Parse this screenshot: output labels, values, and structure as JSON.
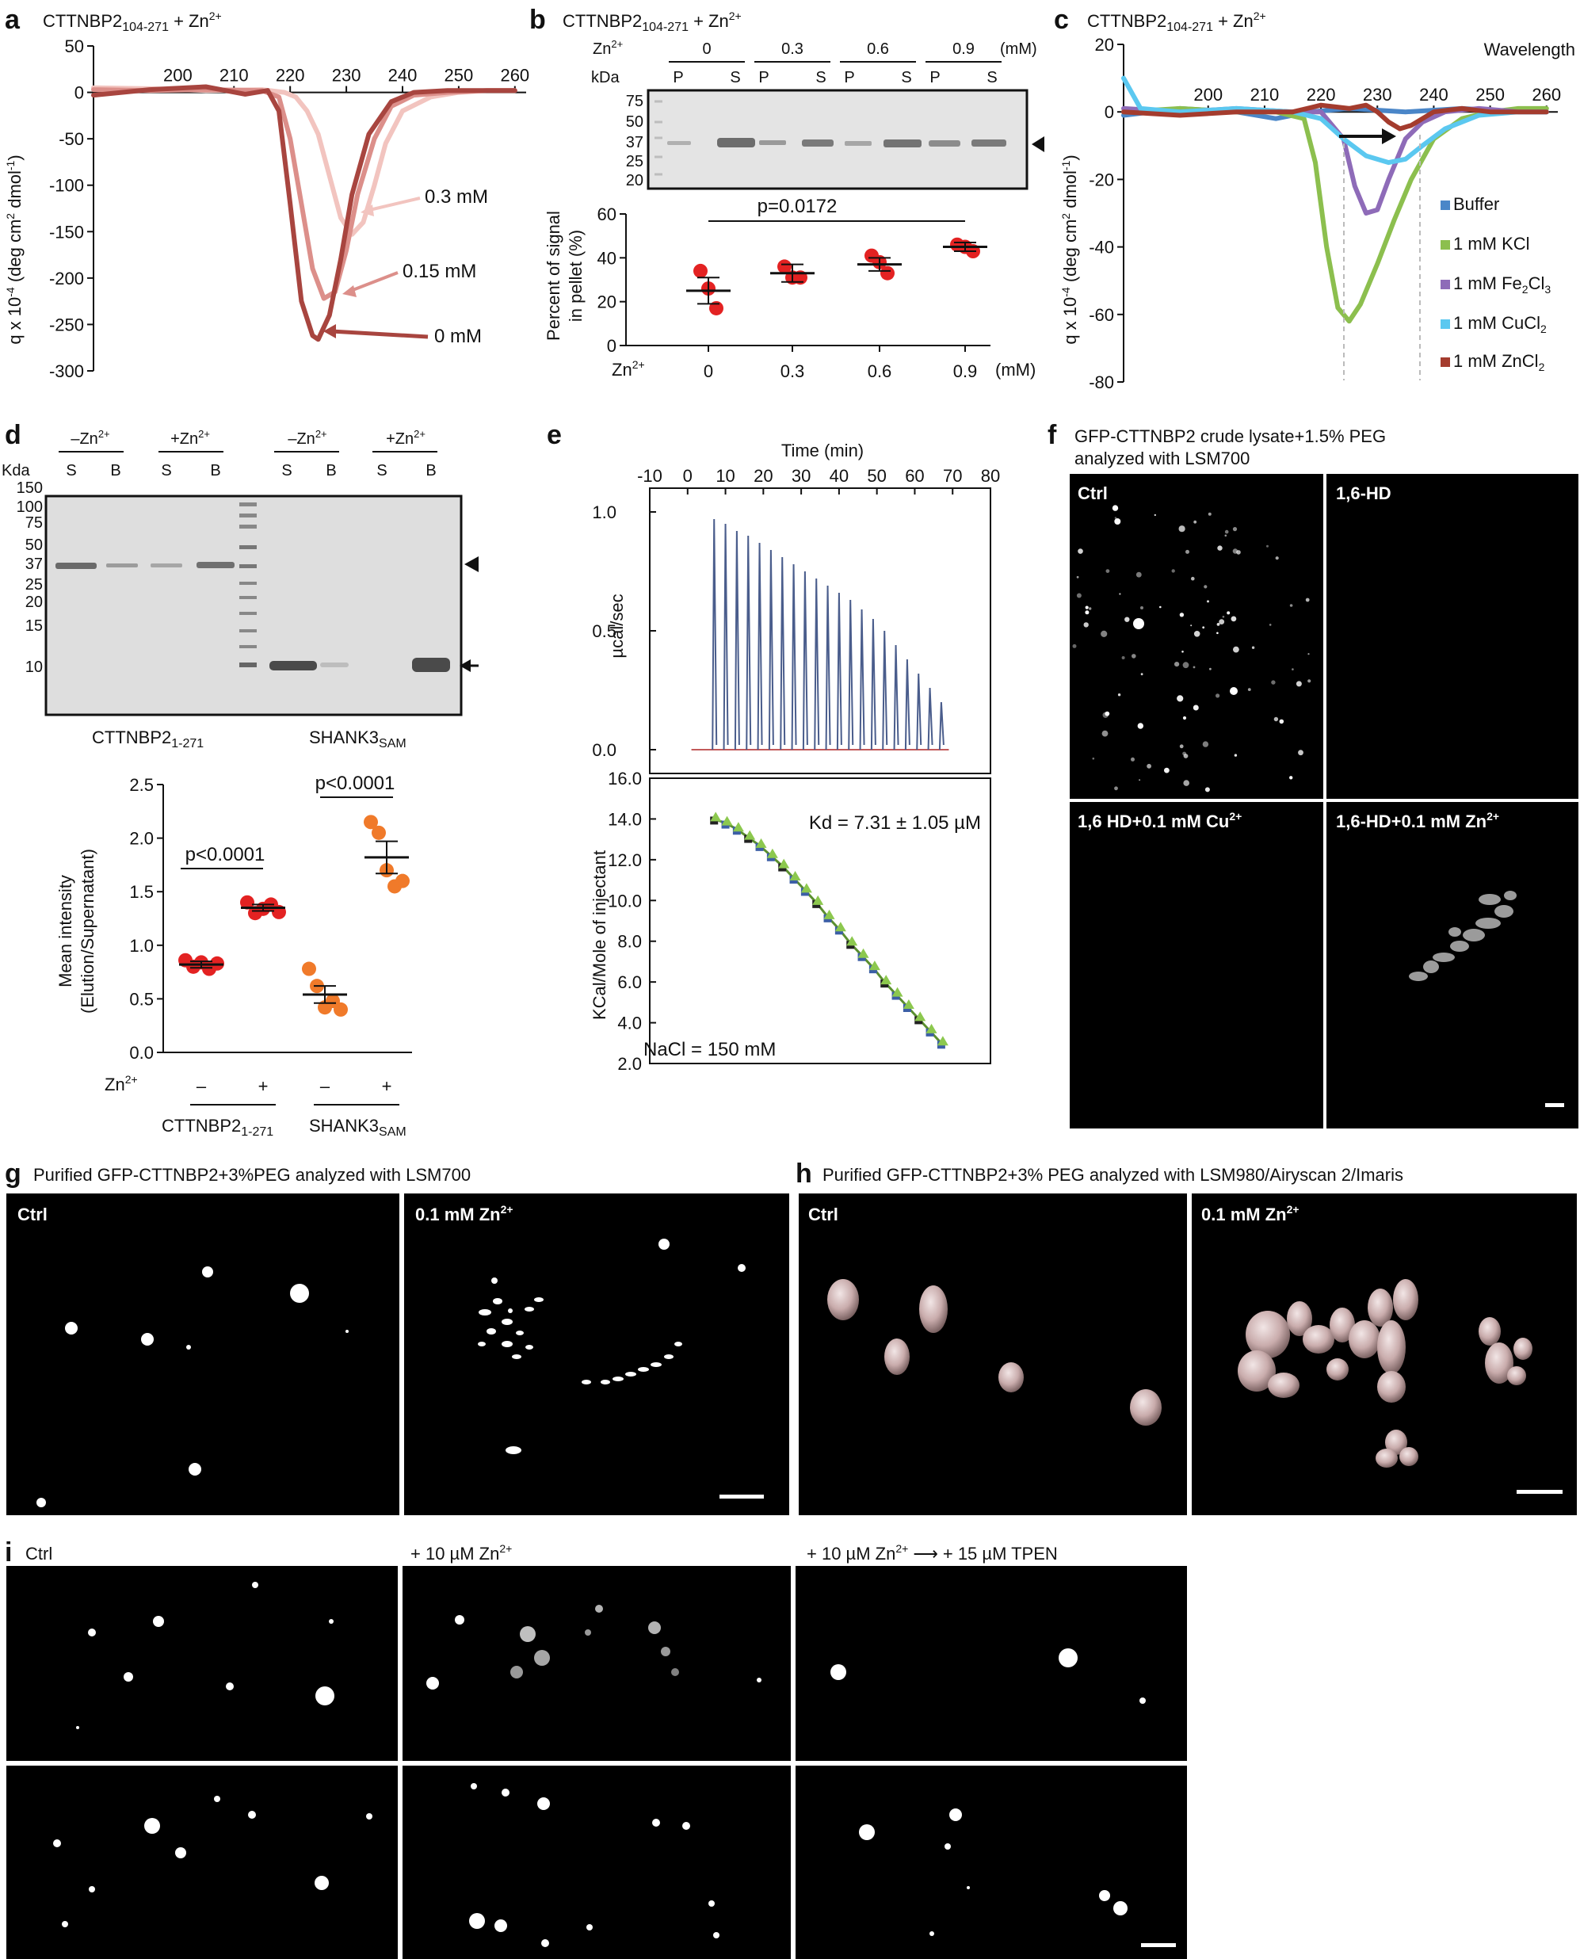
{
  "panels": {
    "a": {
      "label": "a",
      "title": "CTTNBP2",
      "title_sub": "104-271",
      "title_suffix": " + Zn",
      "title_sup": "2+",
      "ylabel": "q x 10",
      "ylabel_sup": "-4",
      "ylabel_rest": " (deg cm",
      "ylabel_sup2": "2",
      "ylabel_end": " dmol",
      "ylabel_sup3": "-1",
      "ylabel_close": ")",
      "annotations": [
        "0.3 mM",
        "0.15 mM",
        "0 mM"
      ]
    },
    "b": {
      "label": "b",
      "title": "CTTNBP2",
      "title_sub": "104-271",
      "title_suffix": " + Zn",
      "title_sup": "2+",
      "gel": {
        "zn_label": "Zn",
        "zn_sup": "2+",
        "conc": [
          "0",
          "0.3",
          "0.6",
          "0.9"
        ],
        "unit": "(mM)",
        "lanes": [
          "P",
          "S",
          "P",
          "S",
          "P",
          "S",
          "P",
          "S"
        ],
        "kda_label": "kDa",
        "markers": [
          "75",
          "50",
          "37",
          "25",
          "20"
        ]
      },
      "ylabel1": "Percent of signal",
      "ylabel2": "in pellet (%)",
      "pvalue": "p=0.0172",
      "xaxis_label": "Zn",
      "xaxis_sup": "2+",
      "xaxis_unit": "(mM)"
    },
    "c": {
      "label": "c",
      "title": "CTTNBP2",
      "title_sub": "104-271",
      "title_suffix": " + Zn",
      "title_sup": "2+",
      "xlabel": "Wavelength",
      "ylabel": "q x 10",
      "ylabel_sup": "-4",
      "ylabel_rest": " (deg cm",
      "ylabel_sup2": "2",
      "ylabel_end": " dmol",
      "ylabel_sup3": "-1",
      "ylabel_close": ")",
      "legend": [
        {
          "name": "Buffer",
          "color": "#4a86c8"
        },
        {
          "name": "1 mM KCl",
          "color": "#8cbf4e"
        },
        {
          "name": "1 mM Fe",
          "sub1": "2",
          "name2": "Cl",
          "sub2": "3",
          "color": "#8e6bb8"
        },
        {
          "name": "1 mM CuCl",
          "sub1": "2",
          "color": "#5bc8f0"
        },
        {
          "name": "1 mM ZnCl",
          "sub1": "2",
          "color": "#a43c2e"
        }
      ]
    },
    "d": {
      "label": "d",
      "gel": {
        "groups": [
          "–Zn",
          "+Zn",
          "–Zn",
          "+Zn"
        ],
        "sup": "2+",
        "lanes": [
          "S",
          "B",
          "S",
          "B",
          "S",
          "B",
          "S",
          "B"
        ],
        "kda_label": "Kda",
        "markers": [
          "150",
          "100",
          "75",
          "50",
          "37",
          "25",
          "20",
          "15",
          "10"
        ],
        "left_label": "CTTNBP2",
        "left_sub": "1-271",
        "right_label": "SHANK3",
        "right_sub": "SAM"
      },
      "ylabel1": "Mean intensity",
      "ylabel2": "(Elution/Supernatant)",
      "p1": "p<0.0001",
      "p2": "p<0.0001",
      "xzn": "Zn",
      "xzn_sup": "2+",
      "xsigns": [
        "–",
        "+",
        "–",
        "+"
      ],
      "group1": "CTTNBP2",
      "group1_sub": "1-271",
      "group2": "SHANK3",
      "group2_sub": "SAM"
    },
    "e": {
      "label": "e",
      "top_xlabel": "Time (min)",
      "top_ylabel": "µcal/sec",
      "bottom_ylabel": "KCal/Mole of injectant",
      "kd": "Kd = 7.31 ± 1.05 µM",
      "nacl": "NaCl = 150 mM"
    },
    "f": {
      "label": "f",
      "title1": "GFP-CTTNBP2 crude lysate+1.5% PEG",
      "title2": "analyzed with LSM700",
      "tiles": [
        "Ctrl",
        "1,6-HD",
        "1,6 HD+0.1 mM Cu",
        "1,6-HD+0.1 mM Zn"
      ],
      "sup": "2+"
    },
    "g": {
      "label": "g",
      "title": "Purified GFP-CTTNBP2+3%PEG analyzed with LSM700",
      "tiles": [
        "Ctrl",
        "0.1 mM Zn"
      ],
      "sup": "2+"
    },
    "h": {
      "label": "h",
      "title": "Purified GFP-CTTNBP2+3% PEG analyzed with LSM980/Airyscan 2/Imaris",
      "tiles": [
        "Ctrl",
        "0.1 mM Zn"
      ],
      "sup": "2+"
    },
    "i": {
      "label": "i",
      "headers": [
        "Ctrl",
        "+ 10 µM Zn",
        "+ 10 µM Zn",
        "+ 15 µM TPEN"
      ],
      "sup": "2+",
      "arrow": "⟶"
    }
  },
  "chart_data": [
    {
      "id": "a",
      "type": "line",
      "xlabel": "",
      "ylabel": "q x 10-4 (deg cm2 dmol-1)",
      "xlim": [
        185,
        262
      ],
      "ylim": [
        -300,
        50
      ],
      "xticks": [
        200,
        210,
        220,
        230,
        240,
        250,
        260
      ],
      "yticks": [
        50,
        0,
        -50,
        -100,
        -150,
        -200,
        -250,
        -300
      ],
      "series": [
        {
          "name": "0.3 mM",
          "color": "#f2c4bf",
          "x": [
            185,
            195,
            205,
            215,
            219,
            221,
            223,
            225,
            227,
            229,
            231,
            233,
            235,
            237,
            240,
            245,
            250,
            255,
            260
          ],
          "y": [
            5,
            4,
            2,
            3,
            0,
            -5,
            -20,
            -45,
            -90,
            -135,
            -153,
            -140,
            -100,
            -55,
            -20,
            -5,
            0,
            2,
            2
          ]
        },
        {
          "name": "0.15 mM",
          "color": "#dc8f8a",
          "x": [
            185,
            195,
            205,
            215,
            218,
            220,
            222,
            224,
            226,
            228,
            230,
            232,
            235,
            238,
            242,
            248,
            255,
            260
          ],
          "y": [
            3,
            2,
            3,
            2,
            -5,
            -50,
            -120,
            -190,
            -222,
            -215,
            -170,
            -110,
            -50,
            -15,
            -3,
            0,
            2,
            2
          ]
        },
        {
          "name": "0 mM",
          "color": "#a8453f",
          "x": [
            185,
            195,
            205,
            212,
            216,
            218,
            220,
            222,
            224,
            225,
            227,
            229,
            231,
            234,
            238,
            242,
            248,
            255,
            260
          ],
          "y": [
            -3,
            3,
            6,
            -2,
            2,
            -20,
            -120,
            -225,
            -262,
            -266,
            -240,
            -180,
            -110,
            -45,
            -10,
            0,
            2,
            2,
            2
          ]
        }
      ]
    },
    {
      "id": "b",
      "type": "scatter",
      "categories": [
        "0",
        "0.3",
        "0.6",
        "0.9"
      ],
      "ylim": [
        0,
        60
      ],
      "yticks": [
        0,
        20,
        40,
        60
      ],
      "ylabel": "Percent of signal in pellet (%)",
      "points": [
        [
          34,
          26,
          17
        ],
        [
          36,
          31,
          31
        ],
        [
          41,
          38,
          33
        ],
        [
          46,
          45,
          43
        ]
      ],
      "mean": [
        25,
        33,
        37,
        45
      ],
      "sem": [
        6,
        4,
        3,
        2
      ]
    },
    {
      "id": "c",
      "type": "line",
      "xlabel": "Wavelength",
      "ylabel": "q x 10-4 (deg cm2 dmol-1)",
      "xlim": [
        185,
        262
      ],
      "ylim": [
        -80,
        20
      ],
      "xticks": [
        200,
        210,
        220,
        230,
        240,
        250,
        260
      ],
      "yticks": [
        20,
        0,
        -20,
        -40,
        -60,
        -80
      ],
      "series": [
        {
          "name": "Buffer",
          "color": "#4a86c8",
          "x": [
            185,
            195,
            205,
            212,
            218,
            225,
            235,
            245,
            255,
            260
          ],
          "y": [
            -1,
            1,
            0,
            -2,
            0,
            1,
            0,
            1,
            0,
            0
          ]
        },
        {
          "name": "1 mM KCl",
          "color": "#8cbf4e",
          "x": [
            185,
            195,
            205,
            212,
            217,
            219,
            221,
            223,
            225,
            227,
            230,
            233,
            236,
            240,
            245,
            250,
            255,
            260
          ],
          "y": [
            0,
            1,
            0,
            0,
            -2,
            -15,
            -40,
            -58,
            -62,
            -57,
            -45,
            -32,
            -20,
            -8,
            -2,
            0,
            1,
            1
          ]
        },
        {
          "name": "1 mM Fe2Cl3",
          "color": "#8e6bb8",
          "x": [
            185,
            195,
            205,
            215,
            220,
            224,
            226,
            228,
            230,
            232,
            235,
            238,
            242,
            248,
            255,
            260
          ],
          "y": [
            1,
            0,
            1,
            0,
            0,
            -8,
            -22,
            -30,
            -29,
            -20,
            -8,
            -3,
            0,
            1,
            0,
            0
          ]
        },
        {
          "name": "1 mM CuCl2",
          "color": "#5bc8f0",
          "x": [
            185,
            188,
            195,
            205,
            215,
            220,
            224,
            228,
            232,
            235,
            238,
            242,
            248,
            255,
            260
          ],
          "y": [
            10,
            1,
            0,
            1,
            0,
            -2,
            -8,
            -13,
            -15,
            -14,
            -10,
            -5,
            -1,
            0,
            0
          ]
        },
        {
          "name": "1 mM ZnCl2",
          "color": "#a43c2e",
          "x": [
            185,
            195,
            205,
            215,
            220,
            225,
            228,
            230,
            232,
            234,
            236,
            238,
            240,
            245,
            250,
            255,
            260
          ],
          "y": [
            0,
            -1,
            0,
            0,
            2,
            1,
            2,
            0,
            -3,
            -5,
            -4,
            -2,
            0,
            1,
            0,
            0,
            0
          ]
        }
      ]
    },
    {
      "id": "d",
      "type": "scatter",
      "categories": [
        "–",
        "+",
        "–",
        "+"
      ],
      "groups": [
        "CTTNBP21-271",
        "SHANK3SAM"
      ],
      "ylim": [
        0,
        2.5
      ],
      "yticks": [
        0.0,
        0.5,
        1.0,
        1.5,
        2.0,
        2.5
      ],
      "ylabel": "Mean intensity (Elution/Supernatant)",
      "points": [
        [
          0.86,
          0.8,
          0.84,
          0.78,
          0.83
        ],
        [
          1.4,
          1.3,
          1.34,
          1.38,
          1.31
        ],
        [
          0.78,
          0.62,
          0.42,
          0.48,
          0.4
        ],
        [
          2.15,
          2.05,
          1.7,
          1.55,
          1.6
        ]
      ],
      "mean": [
        0.82,
        1.35,
        0.54,
        1.82
      ],
      "sem": [
        0.03,
        0.03,
        0.08,
        0.15
      ]
    },
    {
      "id": "e_top",
      "type": "line",
      "xlabel": "Time (min)",
      "ylabel": "µcal/sec",
      "xlim": [
        -10,
        80
      ],
      "ylim": [
        -0.1,
        1.1
      ],
      "xticks": [
        -10,
        0,
        10,
        20,
        30,
        40,
        50,
        60,
        70,
        80
      ],
      "yticks": [
        0.0,
        0.5,
        1.0
      ],
      "peak_times": [
        7,
        10,
        13,
        16,
        19,
        22,
        25,
        28,
        31,
        34,
        37,
        40,
        43,
        46,
        49,
        52,
        55,
        58,
        61,
        64,
        67
      ],
      "peak_heights": [
        0.97,
        0.95,
        0.92,
        0.9,
        0.87,
        0.84,
        0.81,
        0.78,
        0.75,
        0.72,
        0.69,
        0.66,
        0.63,
        0.59,
        0.55,
        0.5,
        0.44,
        0.38,
        0.32,
        0.26,
        0.2
      ]
    },
    {
      "id": "e_bottom",
      "type": "scatter",
      "ylabel": "KCal/Mole of injectant",
      "xlim": [
        -10,
        80
      ],
      "ylim": [
        2.0,
        16.0
      ],
      "yticks": [
        2.0,
        4.0,
        6.0,
        8.0,
        10.0,
        12.0,
        14.0,
        16.0
      ],
      "x": [
        7,
        10,
        13,
        16,
        19,
        22,
        25,
        28,
        31,
        34,
        37,
        40,
        43,
        46,
        49,
        52,
        55,
        58,
        61,
        64,
        67
      ],
      "y": [
        14.0,
        13.8,
        13.5,
        13.1,
        12.7,
        12.2,
        11.7,
        11.1,
        10.5,
        9.9,
        9.2,
        8.6,
        7.9,
        7.3,
        6.7,
        6.0,
        5.4,
        4.8,
        4.2,
        3.6,
        3.0
      ]
    }
  ]
}
